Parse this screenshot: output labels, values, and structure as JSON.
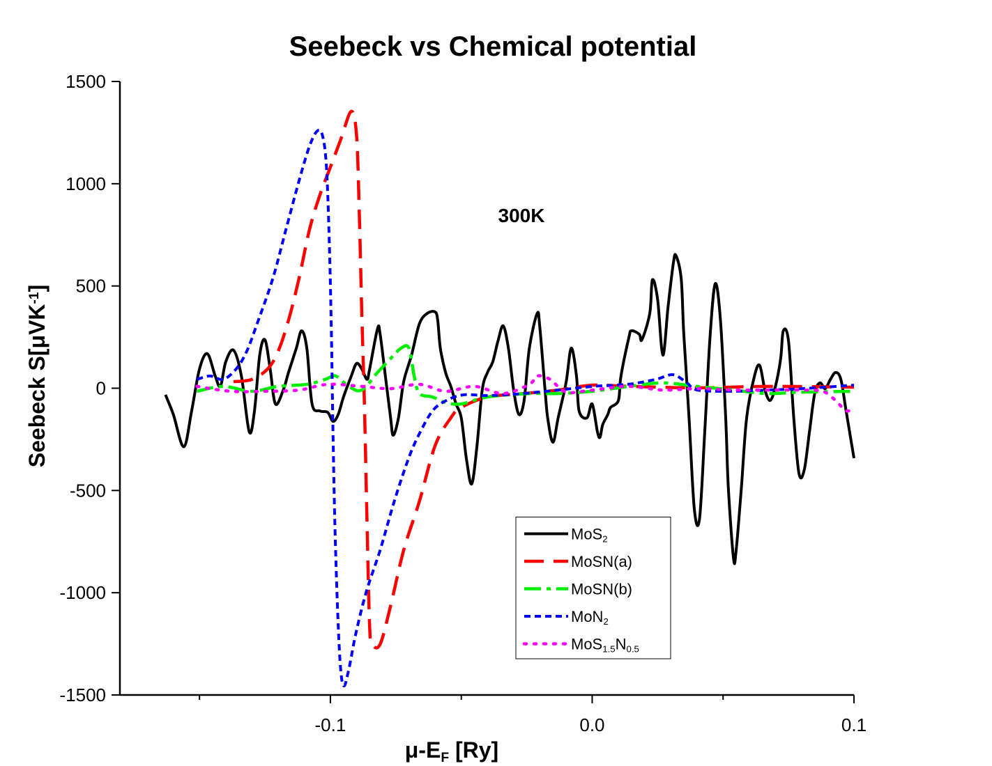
{
  "chart_data": {
    "type": "line",
    "title": "Seebeck vs Chemical potential",
    "annotation": "300K",
    "xlabel": [
      "μ-E",
      {
        "sub": "F"
      },
      " [Ry]"
    ],
    "ylabel": [
      "Seebeck S[μVK",
      {
        "sup": "-1"
      },
      "]"
    ],
    "xlim": [
      -0.1804,
      0.1
    ],
    "ylim": [
      -1500,
      1500
    ],
    "xticks": [
      -0.1,
      {
        "value": 0,
        "label": "0.0"
      },
      0.1
    ],
    "xminor": [
      -0.15,
      -0.05,
      0.05
    ],
    "yticks": [
      -1500,
      -1000,
      -500,
      0,
      500,
      1000,
      1500
    ],
    "grid": false,
    "legend": "lower center",
    "smooth": true,
    "series": [
      {
        "name": [
          "MoS",
          {
            "sub": "2"
          }
        ],
        "color": "#000000",
        "style": "solid",
        "x": [
          -0.163,
          -0.16,
          -0.156,
          -0.153,
          -0.15,
          -0.147,
          -0.144,
          -0.142,
          -0.14,
          -0.137,
          -0.134,
          -0.131,
          -0.129,
          -0.127,
          -0.125,
          -0.123,
          -0.121,
          -0.118,
          -0.116,
          -0.113,
          -0.111,
          -0.109,
          -0.107,
          -0.104,
          -0.101,
          -0.099,
          -0.097,
          -0.095,
          -0.092,
          -0.09,
          -0.088,
          -0.086,
          -0.085,
          -0.082,
          -0.081,
          -0.079,
          -0.077,
          -0.076,
          -0.074,
          -0.072,
          -0.069,
          -0.066,
          -0.063,
          -0.06,
          -0.059,
          -0.058,
          -0.056,
          -0.054,
          -0.052,
          -0.05,
          -0.048,
          -0.046,
          -0.044,
          -0.042,
          -0.04,
          -0.038,
          -0.036,
          -0.034,
          -0.032,
          -0.03,
          -0.028,
          -0.026,
          -0.024,
          -0.021,
          -0.02,
          -0.018,
          -0.017,
          -0.015,
          -0.013,
          -0.01,
          -0.008,
          -0.006,
          -0.005,
          -0.002,
          0.0,
          0.002,
          0.003,
          0.004,
          0.006,
          0.007,
          0.01,
          0.011,
          0.014,
          0.015,
          0.018,
          0.019,
          0.022,
          0.023,
          0.025,
          0.027,
          0.029,
          0.031,
          0.032,
          0.034,
          0.035,
          0.037,
          0.039,
          0.041,
          0.043,
          0.045,
          0.047,
          0.049,
          0.051,
          0.052,
          0.054,
          0.055,
          0.057,
          0.059,
          0.062,
          0.064,
          0.066,
          0.068,
          0.07,
          0.072,
          0.073,
          0.075,
          0.077,
          0.079,
          0.081,
          0.083,
          0.085,
          0.087,
          0.089,
          0.091,
          0.093,
          0.095,
          0.097,
          0.1
        ],
        "values": [
          -32,
          -128,
          -286,
          -111,
          94,
          169,
          60,
          9,
          128,
          186,
          60,
          -213,
          -111,
          162,
          237,
          94,
          -77,
          -9,
          77,
          196,
          281,
          196,
          -77,
          -111,
          -118,
          -162,
          -128,
          -43,
          60,
          121,
          94,
          43,
          94,
          291,
          264,
          60,
          -145,
          -230,
          -145,
          32,
          162,
          315,
          366,
          373,
          332,
          196,
          77,
          9,
          -77,
          -145,
          -349,
          -468,
          -281,
          -9,
          77,
          128,
          230,
          305,
          196,
          -9,
          -128,
          -60,
          196,
          366,
          298,
          -9,
          -145,
          -264,
          -145,
          26,
          196,
          60,
          -111,
          -145,
          -77,
          -213,
          -240,
          -179,
          -128,
          -94,
          -60,
          60,
          247,
          281,
          264,
          237,
          366,
          530,
          434,
          162,
          400,
          611,
          649,
          536,
          264,
          -145,
          -588,
          -639,
          -213,
          247,
          511,
          332,
          -145,
          -485,
          -833,
          -792,
          -485,
          -145,
          60,
          111,
          -9,
          -60,
          9,
          145,
          281,
          230,
          -145,
          -417,
          -400,
          -213,
          -26,
          26,
          -2,
          43,
          77,
          43,
          -111,
          -342
        ]
      },
      {
        "name": [
          "MoSN(a)"
        ],
        "color": "#ff0000",
        "style": "dash",
        "x": [
          -0.137,
          -0.13,
          -0.124,
          -0.12,
          -0.116,
          -0.112,
          -0.108,
          -0.104,
          -0.1,
          -0.096,
          -0.092,
          -0.09,
          -0.089,
          -0.088,
          -0.087,
          -0.086,
          -0.085,
          -0.084,
          -0.081,
          -0.077,
          -0.072,
          -0.066,
          -0.06,
          -0.054,
          -0.05,
          -0.04,
          -0.026,
          -0.013,
          0.0,
          0.014,
          0.04,
          0.067,
          0.1
        ],
        "values": [
          32,
          43,
          94,
          179,
          332,
          536,
          775,
          945,
          1081,
          1218,
          1354,
          1235,
          877,
          366,
          -77,
          -656,
          -1167,
          -1252,
          -1252,
          -1064,
          -792,
          -553,
          -281,
          -145,
          -94,
          -43,
          -26,
          -9,
          15,
          9,
          2,
          9,
          5
        ]
      },
      {
        "name": [
          "MoSN(b)"
        ],
        "color": "#00ee00",
        "style": "dashdot",
        "x": [
          -0.151,
          -0.141,
          -0.13,
          -0.12,
          -0.109,
          -0.102,
          -0.098,
          -0.093,
          -0.088,
          -0.082,
          -0.077,
          -0.073,
          -0.07,
          -0.068,
          -0.066,
          -0.061,
          -0.056,
          -0.05,
          -0.04,
          -0.024,
          -0.013,
          0.0,
          0.014,
          0.027,
          0.04,
          0.054,
          0.067,
          0.08,
          0.1
        ],
        "values": [
          -15,
          9,
          -15,
          9,
          19,
          43,
          60,
          9,
          -9,
          77,
          145,
          196,
          196,
          60,
          -26,
          -43,
          -70,
          -77,
          -43,
          -26,
          -26,
          -15,
          9,
          26,
          9,
          -9,
          -26,
          -19,
          -15
        ]
      },
      {
        "name": [
          "MoN",
          {
            "sub": "2"
          }
        ],
        "color": "#0000ff",
        "style": "short",
        "x": [
          -0.151,
          -0.146,
          -0.141,
          -0.136,
          -0.132,
          -0.128,
          -0.122,
          -0.117,
          -0.112,
          -0.108,
          -0.105,
          -0.103,
          -0.1015,
          -0.1004,
          -0.0996,
          -0.0991,
          -0.0983,
          -0.0972,
          -0.0961,
          -0.0948,
          -0.0929,
          -0.0903,
          -0.0863,
          -0.081,
          -0.0756,
          -0.0703,
          -0.0663,
          -0.061,
          -0.0557,
          -0.049,
          -0.0397,
          -0.0264,
          -0.013,
          0.0003,
          0.0136,
          0.0242,
          0.0309,
          0.0362,
          0.0402,
          0.0535,
          0.0668,
          0.0802,
          0.1
        ],
        "values": [
          43,
          60,
          43,
          94,
          179,
          315,
          536,
          775,
          1013,
          1183,
          1258,
          1235,
          1081,
          707,
          264,
          -145,
          -656,
          -1098,
          -1371,
          -1456,
          -1371,
          -1201,
          -996,
          -792,
          -553,
          -349,
          -230,
          -111,
          -60,
          -32,
          -36,
          -26,
          -9,
          9,
          19,
          43,
          66,
          26,
          -9,
          -15,
          -9,
          -2,
          15
        ]
      },
      {
        "name": [
          "MoS",
          {
            "sub": "1.5"
          },
          "N",
          {
            "sub": "0.5"
          }
        ],
        "color": "#ff00ff",
        "style": "dot",
        "x": [
          -0.151,
          -0.138,
          -0.125,
          -0.112,
          -0.101,
          -0.088,
          -0.077,
          -0.066,
          -0.056,
          -0.045,
          -0.034,
          -0.024,
          -0.021,
          -0.016,
          -0.01,
          0.0,
          0.014,
          0.027,
          0.04,
          0.054,
          0.067,
          0.08,
          0.088,
          0.093,
          0.097,
          0.1
        ],
        "values": [
          9,
          -15,
          -15,
          -9,
          19,
          9,
          -2,
          19,
          -15,
          9,
          -26,
          19,
          60,
          43,
          -19,
          -9,
          9,
          -9,
          -2,
          -9,
          -9,
          -9,
          -15,
          -60,
          -111,
          -94
        ]
      }
    ]
  }
}
